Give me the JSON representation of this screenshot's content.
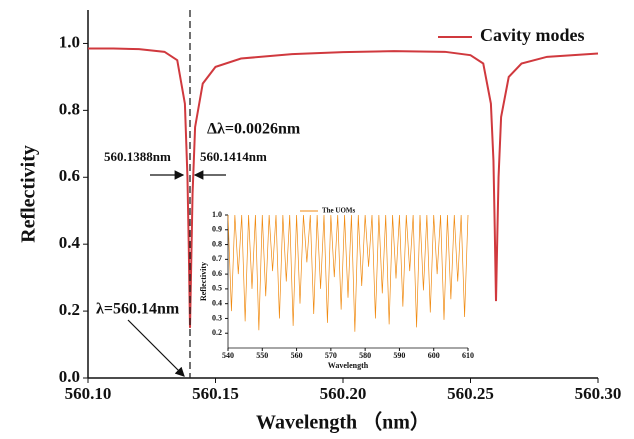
{
  "chart_data": [
    {
      "type": "line",
      "x_label": "Wavelength （nm）",
      "y_label": "Reflectivity",
      "annotations": [
        "Δλ=0.0026nm",
        "560.1388nm",
        "560.1414nm",
        "λ=560.14nm"
      ],
      "reference_line": 560.14,
      "xlim": [
        560.1,
        560.3
      ],
      "xticks": [
        {
          "value": 560.1,
          "label": "560.10"
        },
        560.15,
        {
          "value": 560.2,
          "label": "560.20"
        },
        560.25,
        {
          "value": 560.3,
          "label": "560.30"
        }
      ],
      "ylim": [
        0,
        1.1
      ],
      "yticks": [
        {
          "value": 0,
          "label": "0.0"
        },
        0.2,
        0.4,
        0.6,
        0.8,
        {
          "value": 1,
          "label": "1.0"
        }
      ],
      "legend": "top-right",
      "x": [
        560.1,
        560.11,
        560.12,
        560.13,
        560.135,
        560.138,
        560.139,
        560.1395,
        560.14,
        560.1405,
        560.141,
        560.142,
        560.145,
        560.15,
        560.16,
        560.18,
        560.2,
        560.22,
        560.24,
        560.25,
        560.255,
        560.258,
        560.259,
        560.2595,
        560.26,
        560.2605,
        560.261,
        560.262,
        560.265,
        560.27,
        560.28,
        560.3
      ],
      "series": [
        {
          "name": "Cavity modes",
          "color": "#d0393e",
          "values": [
            0.985,
            0.985,
            0.983,
            0.975,
            0.95,
            0.82,
            0.6,
            0.4,
            0.15,
            0.35,
            0.55,
            0.75,
            0.88,
            0.93,
            0.955,
            0.968,
            0.974,
            0.977,
            0.975,
            0.965,
            0.94,
            0.82,
            0.65,
            0.45,
            0.23,
            0.42,
            0.6,
            0.78,
            0.9,
            0.94,
            0.96,
            0.97
          ]
        }
      ]
    },
    {
      "type": "line",
      "x_label": "Wavelength",
      "y_label": "Reflectivity",
      "xlim": [
        540,
        610
      ],
      "xticks": [
        540,
        550,
        560,
        570,
        580,
        590,
        600,
        610
      ],
      "ylim": [
        0.1,
        1
      ],
      "yticks": [
        0.2,
        0.3,
        0.4,
        0.5,
        0.6,
        0.7,
        0.8,
        0.9,
        {
          "value": 1,
          "label": "1.0"
        }
      ],
      "x": [
        540,
        541,
        542,
        543,
        544,
        545,
        546,
        547,
        548,
        549,
        550,
        551,
        552,
        553,
        554,
        555,
        556,
        557,
        558,
        559,
        560,
        561,
        562,
        563,
        564,
        565,
        566,
        567,
        568,
        569,
        570,
        571,
        572,
        573,
        574,
        575,
        576,
        577,
        578,
        579,
        580,
        581,
        582,
        583,
        584,
        585,
        586,
        587,
        588,
        589,
        590,
        591,
        592,
        593,
        594,
        595,
        596,
        597,
        598,
        599,
        600,
        601,
        602,
        603,
        604,
        605,
        606,
        607,
        608,
        609,
        610
      ],
      "series": [
        {
          "name": "The UOMs",
          "color": "#f08a10",
          "values": [
            1,
            0.35,
            1,
            0.6,
            1,
            0.28,
            1,
            0.5,
            1,
            0.22,
            1,
            0.45,
            1,
            0.62,
            1,
            0.3,
            1,
            0.55,
            1,
            0.25,
            1,
            0.4,
            1,
            0.68,
            1,
            0.33,
            1,
            0.5,
            1,
            0.27,
            1,
            0.58,
            1,
            0.36,
            1,
            0.44,
            1,
            0.21,
            1,
            0.52,
            1,
            0.65,
            1,
            0.3,
            1,
            0.47,
            1,
            0.26,
            1,
            0.57,
            1,
            0.38,
            1,
            0.62,
            1,
            0.24,
            1,
            0.49,
            1,
            0.34,
            1,
            0.6,
            1,
            0.29,
            1,
            0.43,
            1,
            0.55,
            1,
            0.31,
            1
          ]
        }
      ]
    }
  ]
}
